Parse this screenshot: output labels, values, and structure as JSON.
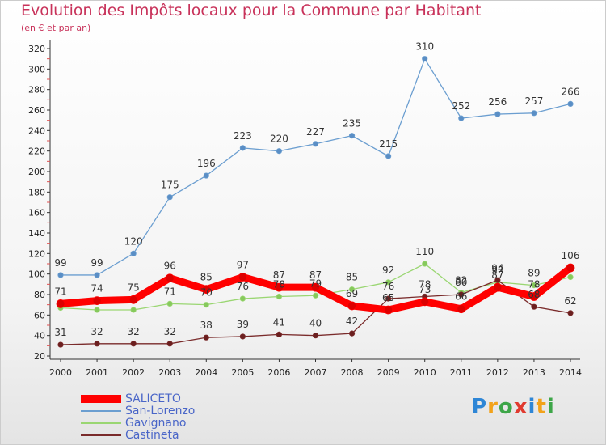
{
  "title": "Evolution des Impôts locaux pour la Commune par Habitant",
  "subtitle": "(en € et par an)",
  "brand": {
    "letters": [
      "P",
      "r",
      "o",
      "x",
      "i",
      "t",
      "i"
    ],
    "colors": [
      "#2e86d6",
      "#f2a21a",
      "#3da648",
      "#e03a2f",
      "#2e86d6",
      "#f2a21a",
      "#3da648"
    ]
  },
  "chart_data": {
    "type": "line",
    "title": "Evolution des Impôts locaux pour la Commune par Habitant",
    "subtitle": "(en € et par an)",
    "xlabel": "",
    "ylabel": "",
    "ylim": [
      20,
      320
    ],
    "y_ticks": [
      20,
      40,
      60,
      80,
      100,
      120,
      140,
      160,
      180,
      200,
      220,
      240,
      260,
      280,
      300,
      320
    ],
    "grid": false,
    "legend_position": "bottom-left",
    "x": [
      "2000",
      "2001",
      "2002",
      "2003",
      "2004",
      "2005",
      "2006",
      "2007",
      "2008",
      "2009",
      "2010",
      "2011",
      "2012",
      "2013",
      "2014"
    ],
    "series": [
      {
        "name": "San-Lorenzo",
        "color": "#6b9ed0",
        "marker": "#5a8ec5",
        "values": [
          99,
          99,
          120,
          175,
          196,
          223,
          220,
          227,
          235,
          215,
          310,
          252,
          256,
          257,
          266
        ],
        "labels": [
          "99",
          "99",
          "120",
          "175",
          "196",
          "223",
          "220",
          "227",
          "235",
          "215",
          "310",
          "252",
          "256",
          "257",
          "266"
        ]
      },
      {
        "name": "Gavignano",
        "color": "#9ad672",
        "marker": "#86c95c",
        "values": [
          67,
          65,
          65,
          71,
          70,
          76,
          78,
          79,
          85,
          92,
          110,
          82,
          92,
          89,
          97
        ],
        "labels": [
          "",
          "",
          "",
          "71",
          "70",
          "76",
          "78",
          "79",
          "85",
          "92",
          "110",
          "82",
          "92",
          "89",
          ""
        ]
      },
      {
        "name": "Castineta",
        "color": "#7a2b2b",
        "marker": "#6b1f1f",
        "values": [
          31,
          32,
          32,
          32,
          38,
          39,
          41,
          40,
          42,
          76,
          78,
          80,
          94,
          68,
          62
        ],
        "labels": [
          "31",
          "32",
          "32",
          "32",
          "38",
          "39",
          "41",
          "40",
          "42",
          "76",
          "78",
          "80",
          "94",
          "68",
          "62"
        ]
      },
      {
        "name": "SALICETO",
        "color": "#ff0000",
        "marker": "#dd0000",
        "values": [
          71,
          74,
          75,
          96,
          85,
          97,
          87,
          87,
          69,
          65,
          73,
          66,
          87,
          78,
          106
        ],
        "labels": [
          "71",
          "74",
          "75",
          "96",
          "85",
          "97",
          "87",
          "87",
          "69",
          "65",
          "73",
          "66",
          "87",
          "78",
          "106"
        ]
      }
    ],
    "legend": [
      {
        "name": "SALICETO",
        "color": "#ff0000"
      },
      {
        "name": "San-Lorenzo",
        "color": "#6b9ed0"
      },
      {
        "name": "Gavignano",
        "color": "#9ad672"
      },
      {
        "name": "Castineta",
        "color": "#7a2b2b"
      }
    ]
  }
}
